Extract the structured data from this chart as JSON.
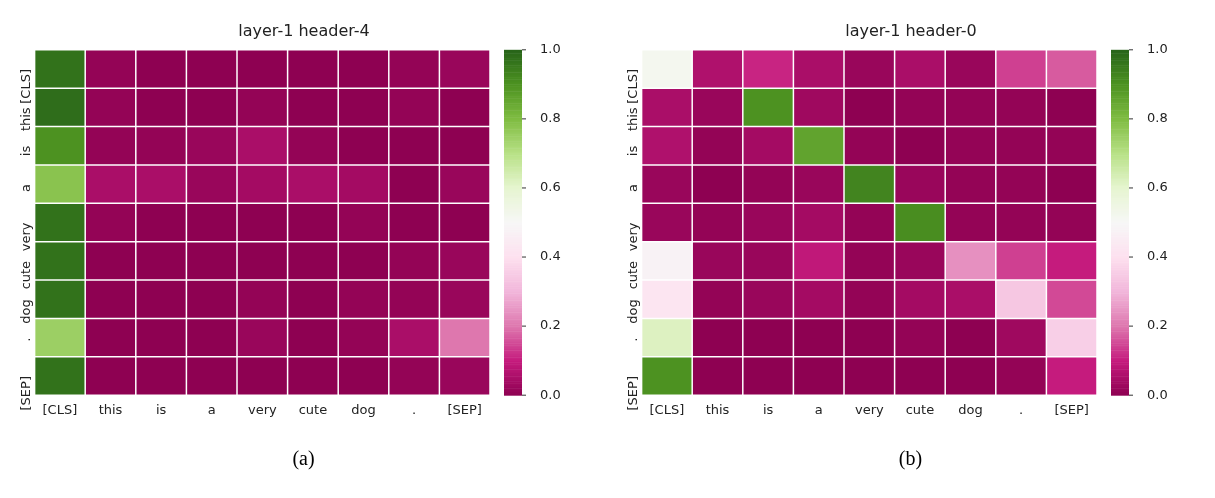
{
  "chart_data": [
    {
      "type": "heatmap",
      "title": "layer-1 header-4",
      "annotations": [
        "(a)"
      ],
      "categories": [
        "[CLS]",
        "this",
        "is",
        "a",
        "very",
        "cute",
        "dog",
        ".",
        "[SEP]"
      ],
      "y_categories": [
        "[CLS]",
        "this",
        "is",
        "a",
        "very",
        "cute",
        "dog",
        ".",
        "[SEP]"
      ],
      "cells": [
        [
          0.97,
          0.01,
          0.0,
          0.0,
          0.0,
          0.0,
          0.0,
          0.01,
          0.02
        ],
        [
          0.98,
          0.01,
          0.0,
          0.0,
          0.01,
          0.0,
          0.0,
          0.01,
          0.0
        ],
        [
          0.9,
          0.01,
          0.01,
          0.02,
          0.05,
          0.01,
          0.0,
          0.0,
          0.0
        ],
        [
          0.78,
          0.05,
          0.05,
          0.02,
          0.04,
          0.05,
          0.04,
          0.0,
          0.02
        ],
        [
          0.97,
          0.01,
          0.0,
          0.0,
          0.0,
          0.0,
          0.01,
          0.0,
          0.0
        ],
        [
          0.97,
          0.0,
          0.0,
          0.0,
          0.0,
          0.0,
          0.0,
          0.01,
          0.02
        ],
        [
          0.97,
          0.0,
          0.0,
          0.0,
          0.01,
          0.0,
          0.01,
          0.01,
          0.02
        ],
        [
          0.75,
          0.0,
          0.0,
          0.0,
          0.02,
          0.0,
          0.01,
          0.05,
          0.2
        ],
        [
          0.97,
          0.0,
          0.0,
          0.0,
          0.0,
          0.0,
          0.0,
          0.01,
          0.02
        ]
      ],
      "clim": [
        0,
        1
      ],
      "cticks": [
        {
          "value": 0,
          "label": "0.0"
        },
        {
          "value": 0.2,
          "label": "0.2"
        },
        {
          "value": 0.4,
          "label": "0.4"
        },
        {
          "value": 0.6,
          "label": "0.6"
        },
        {
          "value": 0.8,
          "label": "0.8"
        },
        {
          "value": 1,
          "label": "1.0"
        }
      ]
    },
    {
      "type": "heatmap",
      "title": "layer-1 header-0",
      "annotations": [
        "(b)"
      ],
      "categories": [
        "[CLS]",
        "this",
        "is",
        "a",
        "very",
        "cute",
        "dog",
        ".",
        "[SEP]"
      ],
      "y_categories": [
        "[CLS]",
        "this",
        "is",
        "a",
        "very",
        "cute",
        "dog",
        ".",
        "[SEP]"
      ],
      "cells": [
        [
          0.52,
          0.06,
          0.11,
          0.05,
          0.02,
          0.05,
          0.02,
          0.14,
          0.17
        ],
        [
          0.05,
          0.02,
          0.9,
          0.03,
          0.0,
          0.01,
          0.01,
          0.01,
          0.0
        ],
        [
          0.06,
          0.01,
          0.04,
          0.86,
          0.01,
          0.0,
          0.01,
          0.01,
          0.01
        ],
        [
          0.02,
          0.0,
          0.01,
          0.02,
          0.93,
          0.02,
          0.01,
          0.01,
          0.0
        ],
        [
          0.02,
          0.01,
          0.02,
          0.04,
          0.01,
          0.91,
          0.01,
          0.01,
          0.01
        ],
        [
          0.48,
          0.02,
          0.02,
          0.09,
          0.01,
          0.02,
          0.24,
          0.14,
          0.1
        ],
        [
          0.42,
          0.01,
          0.02,
          0.04,
          0.01,
          0.04,
          0.05,
          0.34,
          0.15
        ],
        [
          0.62,
          0.0,
          0.0,
          0.0,
          0.0,
          0.01,
          0.0,
          0.03,
          0.36
        ],
        [
          0.9,
          0.0,
          0.0,
          0.0,
          0.0,
          0.0,
          0.0,
          0.01,
          0.1
        ]
      ],
      "clim": [
        0,
        1
      ],
      "cticks": [
        {
          "value": 0,
          "label": "0.0"
        },
        {
          "value": 0.2,
          "label": "0.2"
        },
        {
          "value": 0.4,
          "label": "0.4"
        },
        {
          "value": 0.6,
          "label": "0.6"
        },
        {
          "value": 0.8,
          "label": "0.8"
        },
        {
          "value": 1,
          "label": "1.0"
        }
      ]
    }
  ]
}
